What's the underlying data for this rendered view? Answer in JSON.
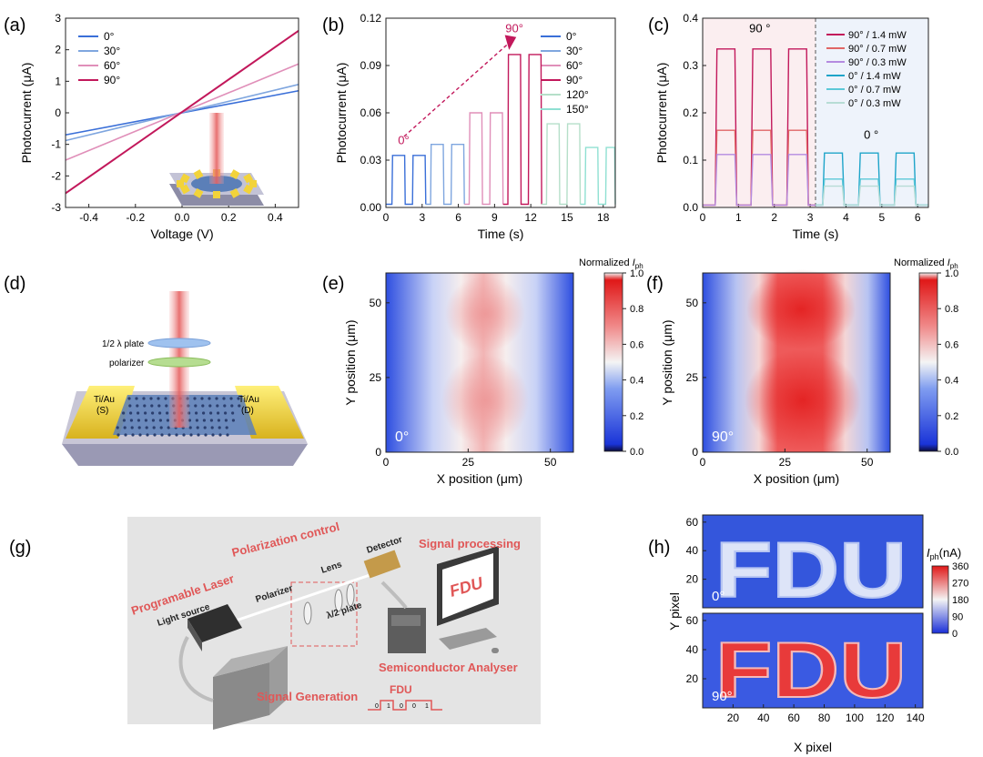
{
  "panels": {
    "a": {
      "letter": "(a)"
    },
    "b": {
      "letter": "(b)"
    },
    "c": {
      "letter": "(c)"
    },
    "d": {
      "letter": "(d)"
    },
    "e": {
      "letter": "(e)"
    },
    "f": {
      "letter": "(f)"
    },
    "g": {
      "letter": "(g)"
    },
    "h": {
      "letter": "(h)"
    }
  },
  "colors": {
    "c0": "#3a6fd8",
    "c30": "#7fa6df",
    "c60": "#e08fb9",
    "c90": "#c2185b",
    "c120": "#b5dfc9",
    "c150": "#8fe0d2",
    "c90_14": "#c2185b",
    "c90_07": "#e06666",
    "c90_03": "#b48be0",
    "c0_14": "#1ea4c9",
    "c0_07": "#5bc8d8",
    "c0_03": "#b7dcd5",
    "accent_red": "#e05757"
  },
  "chart_data": [
    {
      "id": "a",
      "type": "line",
      "xlabel": "Voltage (V)",
      "ylabel": "Photocurrent (μA)",
      "xlim": [
        -0.5,
        0.5
      ],
      "ylim": [
        -3,
        3
      ],
      "xticks": [
        "-0.4",
        "-0.2",
        "0.0",
        "0.2",
        "0.4"
      ],
      "yticks": [
        "-3",
        "-2",
        "-1",
        "0",
        "1",
        "2",
        "3"
      ],
      "legend": "top-left",
      "series": [
        {
          "name": "0°",
          "x": [
            -0.5,
            0.5
          ],
          "y": [
            -0.7,
            0.7
          ]
        },
        {
          "name": "30°",
          "x": [
            -0.5,
            0.5
          ],
          "y": [
            -0.88,
            0.9
          ]
        },
        {
          "name": "60°",
          "x": [
            -0.5,
            0.5
          ],
          "y": [
            -1.5,
            1.55
          ]
        },
        {
          "name": "90°",
          "x": [
            -0.5,
            0.5
          ],
          "y": [
            -2.55,
            2.6
          ]
        }
      ]
    },
    {
      "id": "b",
      "type": "line",
      "xlabel": "Time (s)",
      "ylabel": "Photocurrent (μA)",
      "xlim": [
        0,
        19
      ],
      "ylim": [
        0,
        0.12
      ],
      "xticks": [
        "0",
        "3",
        "6",
        "9",
        "12",
        "15",
        "18"
      ],
      "yticks": [
        "0.00",
        "0.03",
        "0.06",
        "0.09",
        "0.12"
      ],
      "legend": "top-right",
      "annotations": [
        "0°",
        "90°"
      ],
      "series": [
        {
          "name": "0°",
          "on_start": [
            0.5,
            2.2
          ],
          "on_end": [
            1.6,
            3.3
          ],
          "level": 0.033
        },
        {
          "name": "30°",
          "on_start": [
            3.7,
            5.4
          ],
          "on_end": [
            4.8,
            6.5
          ],
          "level": 0.04
        },
        {
          "name": "60°",
          "on_start": [
            6.9,
            8.6
          ],
          "on_end": [
            8.0,
            9.7
          ],
          "level": 0.06
        },
        {
          "name": "90°",
          "on_start": [
            10.1,
            11.8
          ],
          "on_end": [
            11.2,
            12.9
          ],
          "level": 0.097
        },
        {
          "name": "120°",
          "on_start": [
            13.3,
            15.0
          ],
          "on_end": [
            14.4,
            16.1
          ],
          "level": 0.053
        },
        {
          "name": "150°",
          "on_start": [
            16.5,
            18.2
          ],
          "on_end": [
            17.6,
            19.0
          ],
          "level": 0.038
        }
      ]
    },
    {
      "id": "c",
      "type": "line",
      "xlabel": "Time (s)",
      "ylabel": "Photocurrent (μA)",
      "xlim": [
        0,
        6.3
      ],
      "ylim": [
        0,
        0.4
      ],
      "xticks": [
        "0",
        "1",
        "2",
        "3",
        "4",
        "5",
        "6"
      ],
      "yticks": [
        "0.0",
        "0.1",
        "0.2",
        "0.3",
        "0.4"
      ],
      "legend": "top-right",
      "annotations": [
        "90 °",
        "0 °"
      ],
      "divider_x": 3.15,
      "series": [
        {
          "name": "90° / 1.4 mW",
          "level": 0.335,
          "pulses": [
            [
              0.35,
              0.95
            ],
            [
              1.35,
              1.95
            ],
            [
              2.35,
              2.95
            ]
          ]
        },
        {
          "name": "90° / 0.7 mW",
          "level": 0.163,
          "pulses": [
            [
              0.35,
              0.95
            ],
            [
              1.35,
              1.95
            ],
            [
              2.35,
              2.95
            ]
          ]
        },
        {
          "name": "90° / 0.3 mW",
          "level": 0.112,
          "pulses": [
            [
              0.35,
              0.95
            ],
            [
              1.35,
              1.95
            ],
            [
              2.35,
              2.95
            ]
          ]
        },
        {
          "name": "0° / 1.4 mW",
          "level": 0.115,
          "pulses": [
            [
              3.35,
              3.95
            ],
            [
              4.35,
              4.95
            ],
            [
              5.35,
              5.95
            ]
          ]
        },
        {
          "name": "0° / 0.7 mW",
          "level": 0.06,
          "pulses": [
            [
              3.35,
              3.95
            ],
            [
              4.35,
              4.95
            ],
            [
              5.35,
              5.95
            ]
          ]
        },
        {
          "name": "0° / 0.3 mW",
          "level": 0.045,
          "pulses": [
            [
              3.35,
              3.95
            ],
            [
              4.35,
              4.95
            ],
            [
              5.35,
              5.95
            ]
          ]
        }
      ]
    },
    {
      "id": "e",
      "type": "heatmap",
      "xlabel": "X position (μm)",
      "ylabel": "Y position (μm)",
      "xlim": [
        0,
        57
      ],
      "ylim": [
        0,
        60
      ],
      "xticks": [
        "0",
        "25",
        "50"
      ],
      "yticks": [
        "0",
        "25",
        "50"
      ],
      "annotation": "0°",
      "colorbar": {
        "title": "Normalized",
        "title_sym": "I",
        "title_sub": "ph",
        "ticks": [
          "0.0",
          "0.2",
          "0.4",
          "0.6",
          "0.8",
          "1.0"
        ],
        "range": [
          0,
          1
        ]
      }
    },
    {
      "id": "f",
      "type": "heatmap",
      "xlabel": "X position (μm)",
      "ylabel": "Y position (μm)",
      "xlim": [
        0,
        57
      ],
      "ylim": [
        0,
        60
      ],
      "xticks": [
        "0",
        "25",
        "50"
      ],
      "yticks": [
        "0",
        "25",
        "50"
      ],
      "annotation": "90°",
      "colorbar": {
        "title": "Normalized",
        "title_sym": "I",
        "title_sub": "ph",
        "ticks": [
          "0.0",
          "0.2",
          "0.4",
          "0.6",
          "0.8",
          "1.0"
        ],
        "range": [
          0,
          1
        ]
      }
    },
    {
      "id": "h",
      "type": "heatmap",
      "xlabel": "X pixel",
      "ylabel": "Y pixel",
      "xlim": [
        0,
        145
      ],
      "ylim": [
        0,
        65
      ],
      "xticks": [
        "20",
        "40",
        "60",
        "80",
        "100",
        "120",
        "140"
      ],
      "yticks": [
        "20",
        "40",
        "60"
      ],
      "image_text": "FDU",
      "subplots": [
        {
          "annotation": "0°",
          "letter_level": 0.5
        },
        {
          "annotation": "90°",
          "letter_level": 1.0
        }
      ],
      "colorbar": {
        "title_sym": "I",
        "title_sub": "ph",
        "title_unit": "(nA)",
        "ticks": [
          "0",
          "90",
          "180",
          "270",
          "360"
        ],
        "range": [
          0,
          360
        ]
      }
    }
  ],
  "diagram_d": {
    "labels": [
      "1/2 λ plate",
      "polarizer",
      "Ti/Au",
      "(S)",
      "Ti/Au",
      "(D)"
    ]
  },
  "diagram_g": {
    "labels": {
      "polarization": "Polarization control",
      "signal_processing": "Signal processing",
      "laser": "Programable Laser",
      "light_source": "Light source",
      "polarizer": "Polarizer",
      "lens": "Lens",
      "plate": "λ/2 plate",
      "detector": "Detector",
      "monitor": "FDU",
      "analyser": "Semiconductor Analyser",
      "generation": "Signal Generation",
      "code_title": "FDU",
      "code": [
        "0",
        "1",
        "0",
        "0",
        "1"
      ]
    }
  }
}
